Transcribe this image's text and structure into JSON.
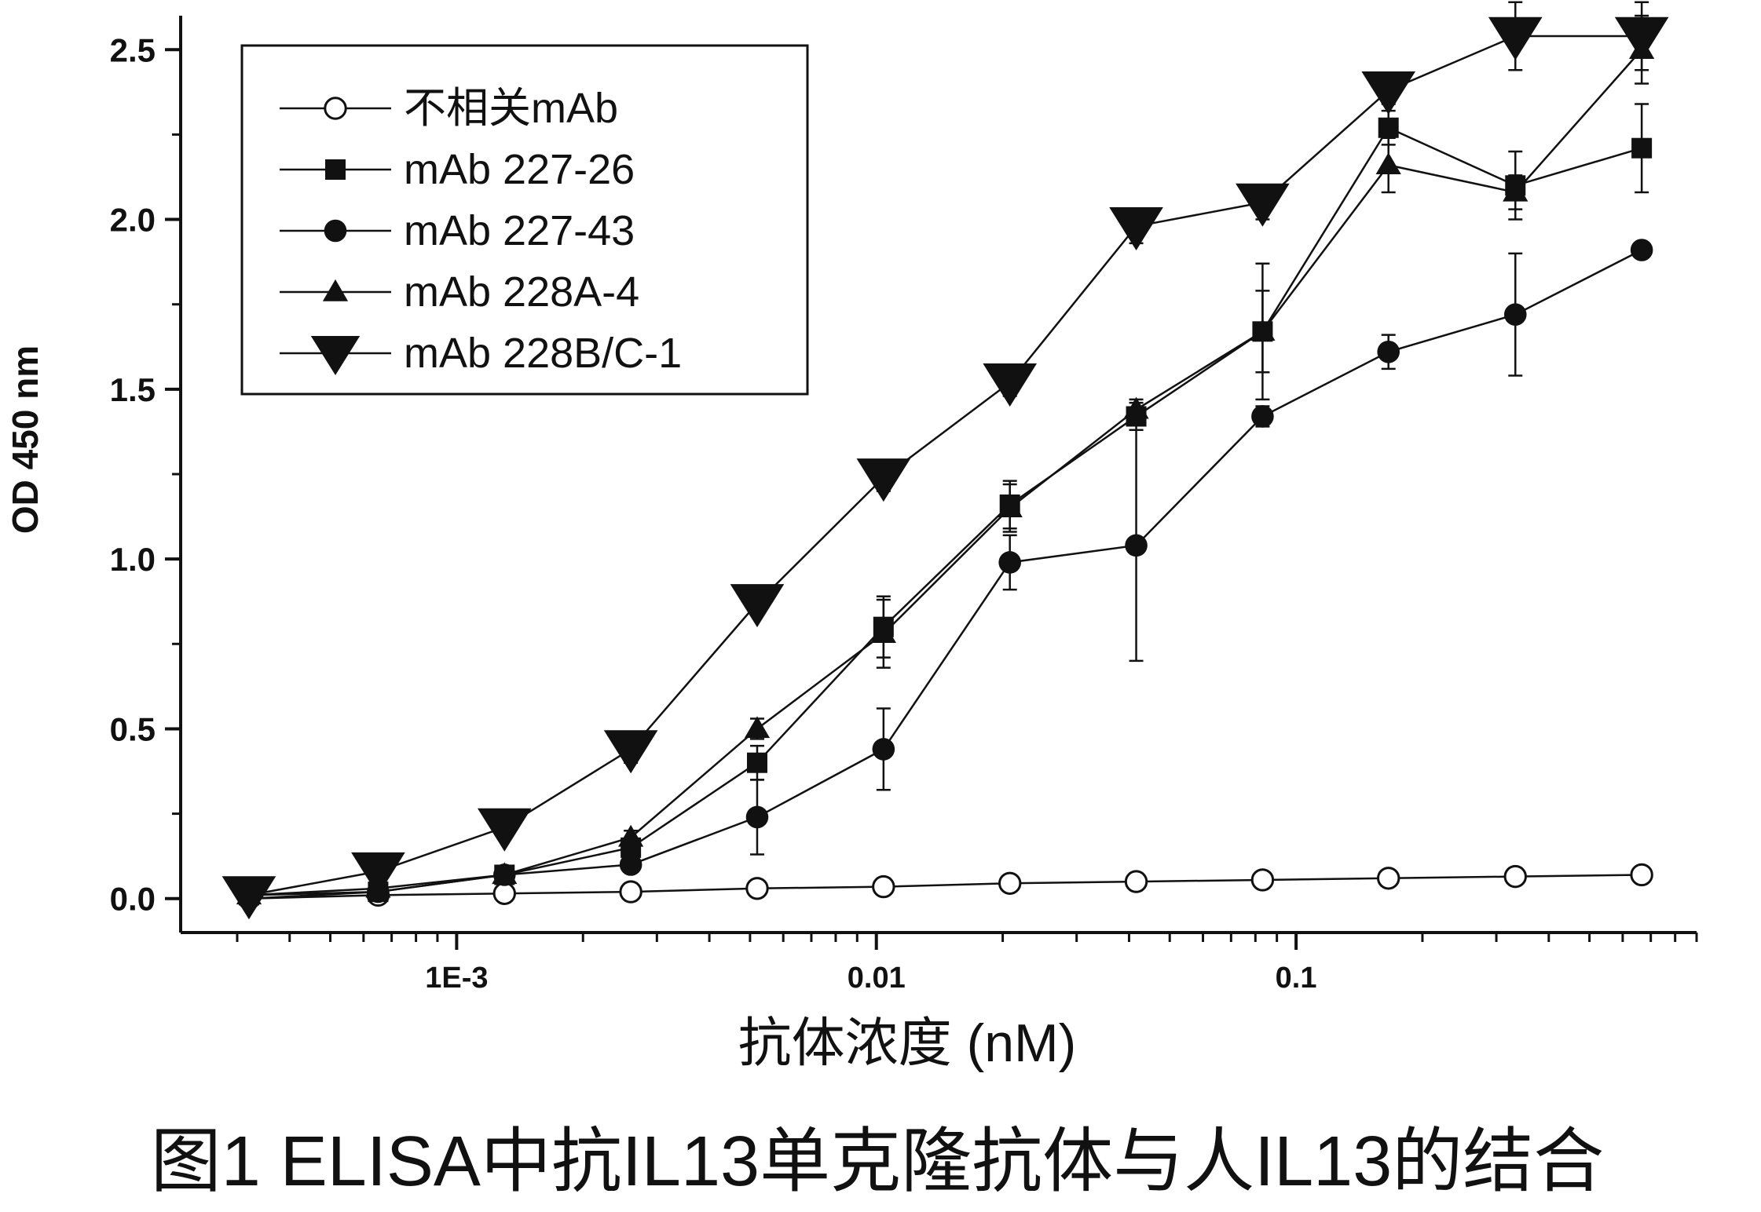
{
  "figure": {
    "caption": "图1  ELISA中抗IL13单克隆抗体与人IL13的结合"
  },
  "chart_data": {
    "type": "line",
    "xlabel": "抗体浓度 (nM)",
    "ylabel": "OD 450 nm",
    "xscale": "log",
    "xlim": [
      0.00022,
      0.9
    ],
    "ylim": [
      -0.1,
      2.6
    ],
    "x_ticks": [
      {
        "value": 0.001,
        "label": "1E-3"
      },
      {
        "value": 0.01,
        "label": "0.01"
      },
      {
        "value": 0.1,
        "label": "0.1"
      }
    ],
    "y_ticks": [
      {
        "value": 0.0,
        "label": "0.0"
      },
      {
        "value": 0.5,
        "label": "0.5"
      },
      {
        "value": 1.0,
        "label": "1.0"
      },
      {
        "value": 1.5,
        "label": "1.5"
      },
      {
        "value": 2.0,
        "label": "2.0"
      },
      {
        "value": 2.5,
        "label": "2.5"
      }
    ],
    "legend_position": "top-left",
    "grid": false,
    "x": [
      0.00032,
      0.00065,
      0.0013,
      0.0026,
      0.0052,
      0.0104,
      0.0208,
      0.0416,
      0.0832,
      0.166,
      0.333,
      0.666
    ],
    "series": [
      {
        "name": "不相关mAb",
        "marker": "circle-open",
        "values": [
          0.0,
          0.01,
          0.015,
          0.02,
          0.03,
          0.035,
          0.045,
          0.05,
          0.055,
          0.06,
          0.065,
          0.07
        ],
        "errors": [
          0.01,
          0.01,
          0.01,
          0.01,
          0.01,
          0.01,
          0.01,
          0.01,
          0.01,
          0.02,
          0.02,
          0.02
        ]
      },
      {
        "name": "mAb 227-26",
        "marker": "square",
        "values": [
          0.01,
          0.02,
          0.07,
          0.15,
          0.4,
          0.8,
          1.16,
          1.42,
          1.67,
          2.27,
          2.1,
          2.21
        ],
        "errors": [
          0.01,
          0.01,
          0.02,
          0.02,
          0.05,
          0.09,
          0.07,
          0.04,
          0.2,
          0.05,
          0.1,
          0.13
        ]
      },
      {
        "name": "mAb 227-43",
        "marker": "circle",
        "values": [
          0.0,
          0.02,
          0.07,
          0.1,
          0.24,
          0.44,
          0.99,
          1.04,
          1.42,
          1.61,
          1.72,
          1.91
        ],
        "errors": [
          0.01,
          0.01,
          0.01,
          0.02,
          0.11,
          0.12,
          0.08,
          0.34,
          0.03,
          0.05,
          0.18,
          0.02
        ]
      },
      {
        "name": "mAb 228A-4",
        "marker": "triangle-up",
        "values": [
          0.01,
          0.03,
          0.07,
          0.18,
          0.5,
          0.78,
          1.15,
          1.44,
          1.67,
          2.16,
          2.08,
          2.5
        ],
        "errors": [
          0.01,
          0.01,
          0.01,
          0.02,
          0.03,
          0.1,
          0.07,
          0.03,
          0.12,
          0.08,
          0.05,
          0.1
        ]
      },
      {
        "name": "mAb 228B/C-1",
        "marker": "triangle-down",
        "values": [
          0.01,
          0.08,
          0.21,
          0.44,
          0.87,
          1.24,
          1.52,
          1.98,
          2.05,
          2.38,
          2.54,
          2.54
        ],
        "errors": [
          0.02,
          0.02,
          0.03,
          0.04,
          0.03,
          0.04,
          0.04,
          0.05,
          0.05,
          0.04,
          0.1,
          0.1
        ]
      }
    ]
  }
}
